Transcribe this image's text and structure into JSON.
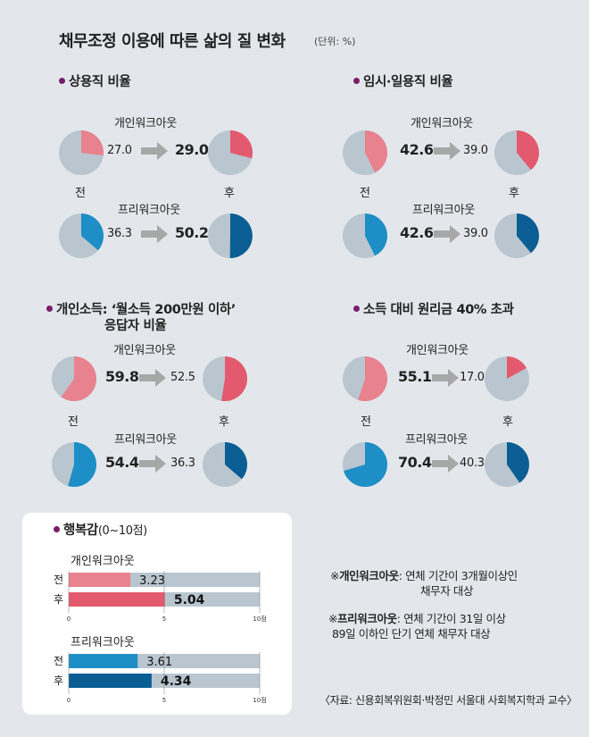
{
  "title": "채무조정 이용에 따른 삶의 질 변화",
  "unit": "(단위: %)",
  "colors": {
    "gray": "#b9c6d0",
    "pink_light": "#e8828e",
    "pink": "#e35a6e",
    "blue_light": "#1e8fc6",
    "blue": "#0b5e93",
    "accent_dot": "#7b1d6b",
    "arrow": "#a7a7a7"
  },
  "labels": {
    "before": "전",
    "after": "후",
    "individual": "개인워크아웃",
    "pre": "프리워크아웃"
  },
  "chart_data": [
    {
      "type": "pie",
      "title": "상용직 비율",
      "series": [
        {
          "name": "개인워크아웃",
          "before": 27.0,
          "after": 29.0,
          "before_label": "27.0",
          "after_label": "29.0"
        },
        {
          "name": "프리워크아웃",
          "before": 36.3,
          "after": 50.2,
          "before_label": "36.3",
          "after_label": "50.2"
        }
      ]
    },
    {
      "type": "pie",
      "title": "임시·일용직 비율",
      "series": [
        {
          "name": "개인워크아웃",
          "before": 42.6,
          "after": 39.0,
          "before_label": "42.6",
          "after_label": "39.0"
        },
        {
          "name": "프리워크아웃",
          "before": 42.6,
          "after": 39.0,
          "before_label": "42.6",
          "after_label": "39.0"
        }
      ]
    },
    {
      "type": "pie",
      "title": "개인소득: ‘월소득 200만원 이하’",
      "title2": "응답자 비율",
      "series": [
        {
          "name": "개인워크아웃",
          "before": 59.8,
          "after": 52.5,
          "before_label": "59.8",
          "after_label": "52.5"
        },
        {
          "name": "프리워크아웃",
          "before": 54.4,
          "after": 36.3,
          "before_label": "54.4",
          "after_label": "36.3"
        }
      ]
    },
    {
      "type": "pie",
      "title": "소득 대비 원리금 40% 초과",
      "series": [
        {
          "name": "개인워크아웃",
          "before": 55.1,
          "after": 17.0,
          "before_label": "55.1",
          "after_label": "17.0"
        },
        {
          "name": "프리워크아웃",
          "before": 70.4,
          "after": 40.3,
          "before_label": "70.4",
          "after_label": "40.3"
        }
      ]
    },
    {
      "type": "bar",
      "title": "행복감",
      "title_suffix": "(0~10점)",
      "xlim": [
        0,
        10
      ],
      "ticks": [
        "0",
        "5",
        "10점"
      ],
      "groups": [
        {
          "name": "개인워크아웃",
          "before": 3.23,
          "after": 5.04,
          "before_label": "3.23",
          "after_label": "5.04"
        },
        {
          "name": "프리워크아웃",
          "before": 3.61,
          "after": 4.34,
          "before_label": "3.61",
          "after_label": "4.34"
        }
      ]
    }
  ],
  "notes": [
    {
      "mark": "※",
      "term": "개인워크아웃",
      "line1": ": 연체 기간이 3개월이상인",
      "line2": "채무자 대상"
    },
    {
      "mark": "※",
      "term": "프리워크아웃",
      "line1": ": 연체 기간이 31일 이상",
      "line2": "89일 이하인 단기 연체 채무자 대상"
    }
  ],
  "source": "〈자료: 신용회복위원회·박정민 서울대 사회복지학과 교수〉"
}
